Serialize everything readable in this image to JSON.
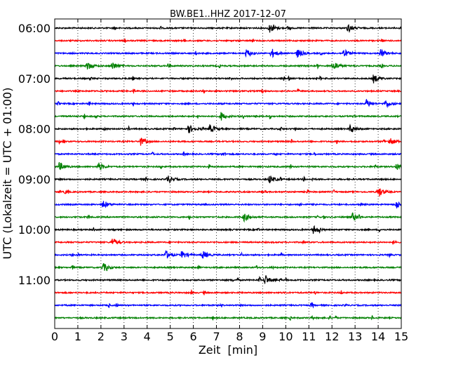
{
  "chart_data": {
    "type": "line",
    "title": "BW.BE1..HHZ 2017-12-07",
    "xlabel": "Zeit  [min]",
    "ylabel": "UTC (Lokalzeit = UTC + 01:00)",
    "xlim": [
      0,
      15
    ],
    "x_ticks": [
      0,
      1,
      2,
      3,
      4,
      5,
      6,
      7,
      8,
      9,
      10,
      11,
      12,
      13,
      14,
      15
    ],
    "y_tick_labels": [
      "06:00",
      "07:00",
      "08:00",
      "09:00",
      "10:00",
      "11:00"
    ],
    "grid": "vertical dotted",
    "legend": "none",
    "color_cycle": [
      "#000000",
      "#ff0000",
      "#0000ff",
      "#008000"
    ],
    "trace_count": 24,
    "trace_interval_min": 15,
    "notable_events": [
      {
        "trace": 0,
        "minutes": [
          9.3,
          12.7
        ]
      },
      {
        "trace": 2,
        "minutes": [
          8.3,
          9.4,
          10.5,
          12.5,
          14.1
        ]
      },
      {
        "trace": 3,
        "minutes": [
          1.4,
          2.5,
          12.1
        ]
      },
      {
        "trace": 4,
        "minutes": [
          13.8
        ]
      },
      {
        "trace": 6,
        "minutes": [
          13.5,
          14.3
        ]
      },
      {
        "trace": 7,
        "minutes": [
          7.2
        ]
      },
      {
        "trace": 8,
        "minutes": [
          5.8,
          6.7,
          12.8
        ]
      },
      {
        "trace": 9,
        "minutes": [
          3.7,
          14.5
        ]
      },
      {
        "trace": 11,
        "minutes": [
          0.2,
          1.9,
          14.8
        ]
      },
      {
        "trace": 12,
        "minutes": [
          4.9,
          9.3
        ]
      },
      {
        "trace": 13,
        "minutes": [
          14.0
        ]
      },
      {
        "trace": 14,
        "minutes": [
          2.1,
          14.8
        ]
      },
      {
        "trace": 15,
        "minutes": [
          8.2,
          12.9
        ]
      },
      {
        "trace": 16,
        "minutes": [
          11.2
        ]
      },
      {
        "trace": 17,
        "minutes": [
          2.5
        ]
      },
      {
        "trace": 18,
        "minutes": [
          4.8,
          5.5,
          6.4
        ]
      },
      {
        "trace": 19,
        "minutes": [
          2.1
        ]
      },
      {
        "trace": 20,
        "minutes": [
          9.1
        ]
      }
    ]
  }
}
